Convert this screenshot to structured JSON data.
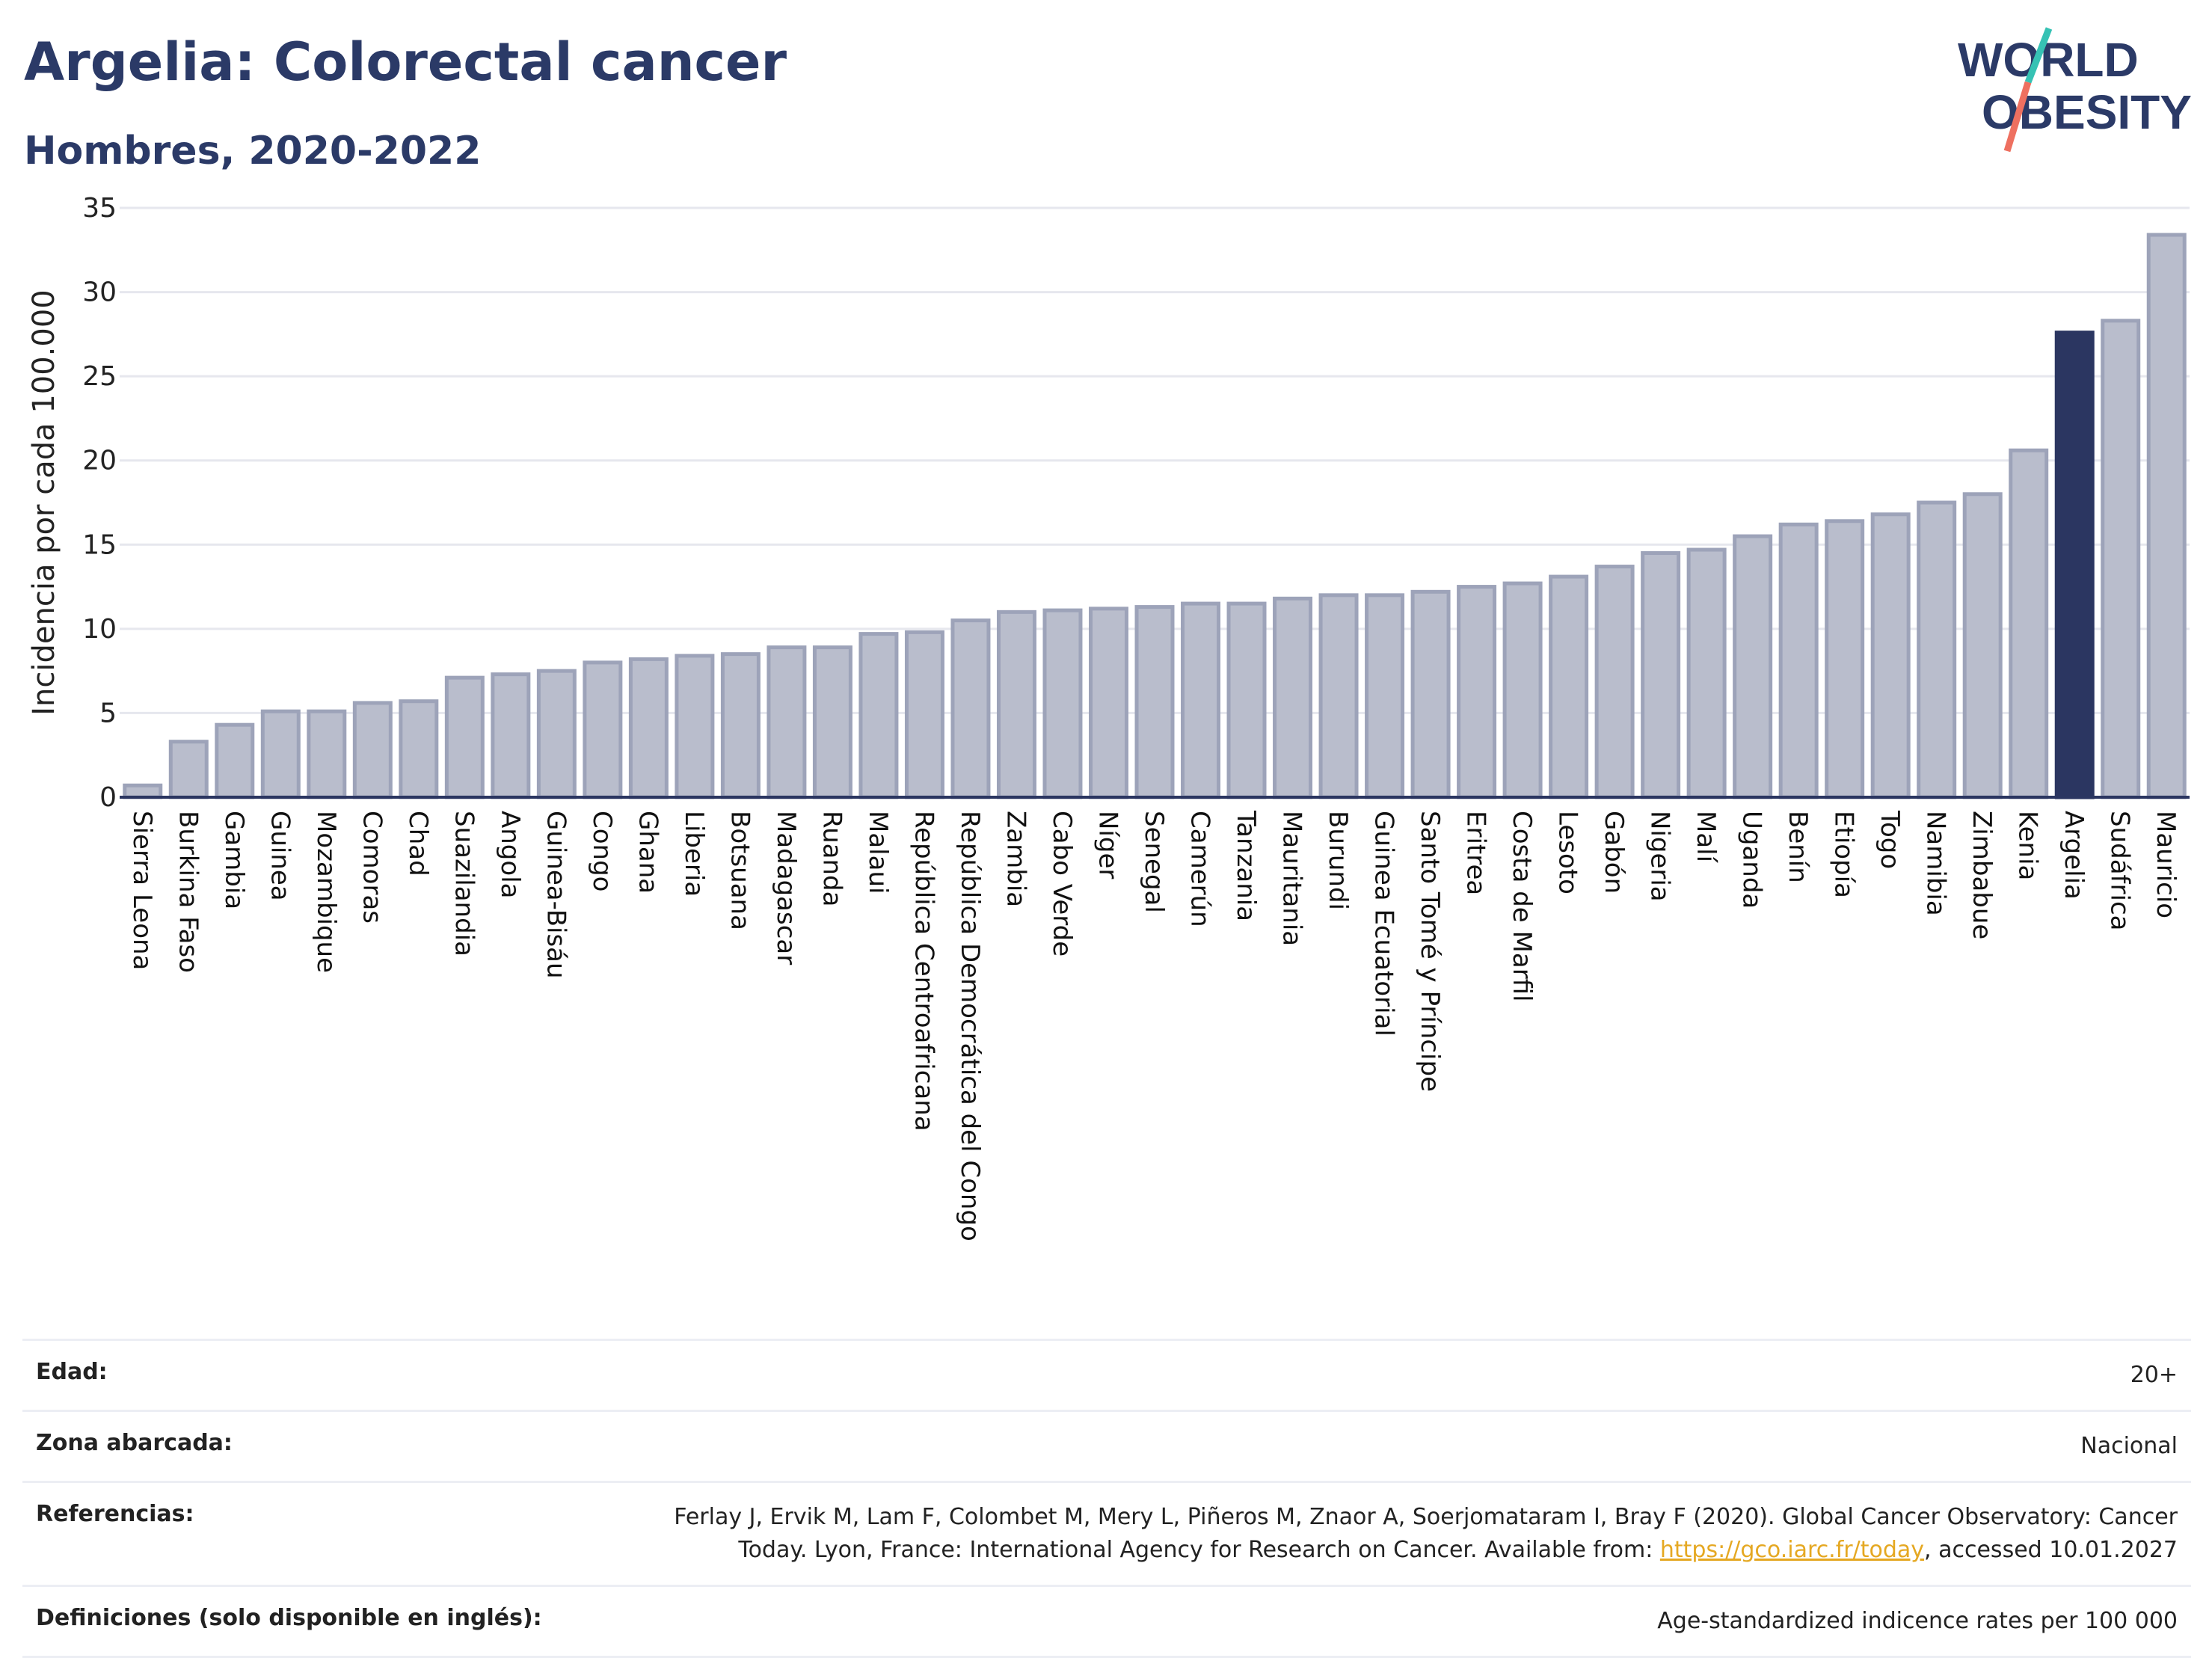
{
  "header": {
    "title": "Argelia: Colorectal cancer",
    "subtitle": "Hombres, 2020-2022",
    "logo_line1": "WORLD",
    "logo_line2": "OBESITY"
  },
  "colors": {
    "bar": "#b9bdcc",
    "bar_border": "#9da3b9",
    "highlight": "#2b3661",
    "title": "#2b3a67",
    "logo_teal": "#36c2b4",
    "logo_coral": "#ee7060"
  },
  "chart_data": {
    "type": "bar",
    "ylabel": "Incidencia por cada 100.000",
    "ylim": [
      0,
      35
    ],
    "yticks": [
      0,
      5,
      10,
      15,
      20,
      25,
      30,
      35
    ],
    "grid": true,
    "highlight": "Argelia",
    "categories": [
      "Sierra Leona",
      "Burkina Faso",
      "Gambia",
      "Guinea",
      "Mozambique",
      "Comoras",
      "Chad",
      "Suazilandia",
      "Angola",
      "Guinea-Bisáu",
      "Congo",
      "Ghana",
      "Liberia",
      "Botsuana",
      "Madagascar",
      "Ruanda",
      "Malaui",
      "República Centroafricana",
      "República Democrática del Congo",
      "Zambia",
      "Cabo Verde",
      "Níger",
      "Senegal",
      "Camerún",
      "Tanzania",
      "Mauritania",
      "Burundi",
      "Guinea Ecuatorial",
      "Santo Tomé y Príncipe",
      "Eritrea",
      "Costa de Marfil",
      "Lesoto",
      "Gabón",
      "Nigeria",
      "Malí",
      "Uganda",
      "Benín",
      "Etiopía",
      "Togo",
      "Namibia",
      "Zimbabue",
      "Kenia",
      "Argelia",
      "Sudáfrica",
      "Mauricio"
    ],
    "values": [
      0.7,
      3.3,
      4.3,
      5.1,
      5.1,
      5.6,
      5.7,
      7.1,
      7.3,
      7.5,
      8.0,
      8.2,
      8.4,
      8.5,
      8.9,
      8.9,
      9.7,
      9.8,
      10.5,
      11.0,
      11.1,
      11.2,
      11.3,
      11.5,
      11.5,
      11.8,
      12.0,
      12.0,
      12.2,
      12.5,
      12.7,
      13.1,
      13.7,
      14.5,
      14.7,
      15.5,
      16.2,
      16.4,
      16.8,
      17.5,
      18.0,
      20.6,
      27.6,
      28.3,
      33.4
    ]
  },
  "meta": {
    "age_label": "Edad:",
    "age_value": "20+",
    "area_label": "Zona abarcada:",
    "area_value": "Nacional",
    "ref_label": "Referencias:",
    "ref_text_1": "Ferlay J, Ervik M, Lam F, Colombet M, Mery L, Piñeros M, Znaor A, Soerjomataram I, Bray F (2020). Global Cancer Observatory: Cancer Today. Lyon, France: International Agency for Research on Cancer. Available from: ",
    "ref_link": "https://gco.iarc.fr/today",
    "ref_text_2": ", accessed 10.01.2027",
    "def_label": "Definiciones (solo disponible en inglés):",
    "def_value": "Age-standardized indicence rates per 100 000"
  }
}
